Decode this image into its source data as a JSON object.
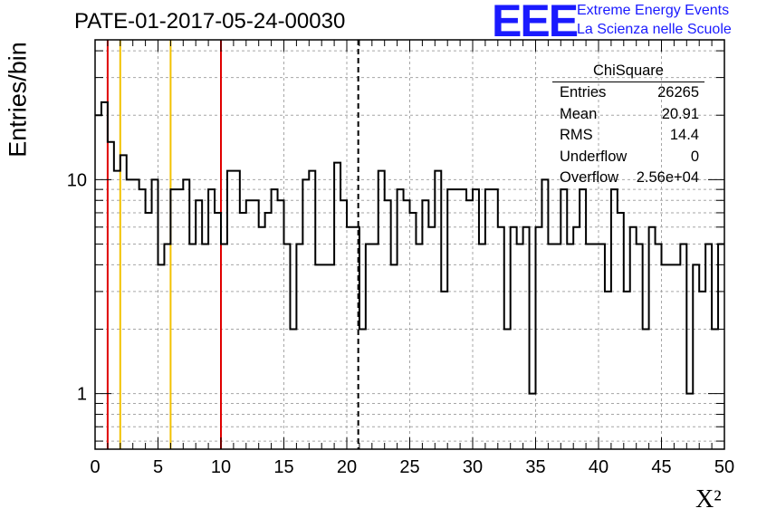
{
  "page_title": "PATE-01-2017-05-24-00030",
  "logo": {
    "text": "EEE",
    "line1": "Extreme Energy Events",
    "line2": "La Scienza nelle Scuole",
    "color": "#1a1aff"
  },
  "stats": {
    "title": "ChiSquare",
    "rows": [
      {
        "label": "Entries",
        "value": "26265"
      },
      {
        "label": "Mean",
        "value": "20.91"
      },
      {
        "label": "RMS",
        "value": "14.4"
      },
      {
        "label": "Underflow",
        "value": "0"
      },
      {
        "label": "Overflow",
        "value": "2.56e+04"
      }
    ]
  },
  "chart_data": {
    "type": "histogram",
    "xlabel": "X²",
    "ylabel": "Entries/bin",
    "xlim": [
      0,
      50
    ],
    "ylim": [
      0.55,
      45
    ],
    "y_scale": "log",
    "grid": true,
    "bin_width": 0.5,
    "x_ticks": [
      "0",
      "5",
      "10",
      "15",
      "20",
      "25",
      "30",
      "35",
      "40",
      "45",
      "50"
    ],
    "y_tick_labels": [
      {
        "value": 1,
        "label": "1"
      },
      {
        "value": 10,
        "label": "10"
      }
    ],
    "values": [
      20,
      23,
      15,
      11,
      13,
      10,
      10,
      9,
      7,
      10,
      4,
      5,
      9,
      9,
      10,
      5,
      8,
      5,
      9,
      7,
      5,
      11,
      11,
      7,
      8,
      8,
      6,
      7,
      9,
      8,
      5,
      2,
      5,
      10,
      11,
      4,
      4,
      4,
      12,
      8,
      6,
      6,
      2,
      5,
      5,
      11,
      8,
      4,
      9,
      8,
      7,
      5,
      8,
      6,
      11,
      3,
      9,
      9,
      9,
      8,
      9,
      5,
      9,
      9,
      6,
      2,
      6,
      5,
      6,
      1,
      6,
      10,
      5,
      5,
      9,
      5,
      6,
      9,
      5,
      5,
      5,
      3,
      9,
      7,
      3,
      6,
      5,
      2,
      6,
      5,
      4,
      4,
      4,
      5,
      1,
      4,
      3,
      5,
      2,
      5
    ],
    "vertical_lines": [
      {
        "x": 1,
        "color": "#e00000",
        "style": "solid"
      },
      {
        "x": 2,
        "color": "#f2c200",
        "style": "solid"
      },
      {
        "x": 6,
        "color": "#f2c200",
        "style": "solid"
      },
      {
        "x": 10,
        "color": "#e00000",
        "style": "solid"
      },
      {
        "x": 20.91,
        "color": "#000000",
        "style": "dashed"
      }
    ]
  }
}
